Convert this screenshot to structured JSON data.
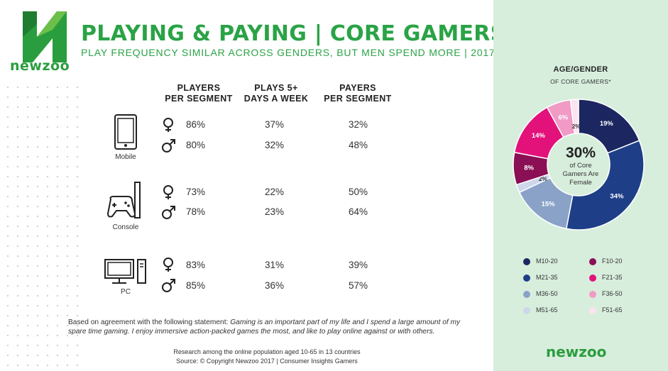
{
  "brand": {
    "name": "newzoo",
    "color": "#2a9d3e"
  },
  "header": {
    "title": "PLAYING & PAYING | CORE GAMERS",
    "title_mark": "*",
    "subtitle": "PLAY FREQUENCY SIMILAR ACROSS GENDERS, BUT MEN SPEND MORE | 2017"
  },
  "table": {
    "columns": [
      {
        "line1": "PLAYERS",
        "line2": "PER SEGMENT"
      },
      {
        "line1": "PLAYS 5+",
        "line2": "DAYS A WEEK"
      },
      {
        "line1": "PAYERS",
        "line2": "PER SEGMENT"
      }
    ],
    "devices": [
      {
        "name": "Mobile",
        "icon": "smartphone-icon",
        "female": [
          "86%",
          "37%",
          "32%"
        ],
        "male": [
          "80%",
          "32%",
          "48%"
        ]
      },
      {
        "name": "Console",
        "icon": "gamepad-icon",
        "female": [
          "73%",
          "22%",
          "50%"
        ],
        "male": [
          "78%",
          "23%",
          "64%"
        ]
      },
      {
        "name": "PC",
        "icon": "desktop-pc-icon",
        "female": [
          "83%",
          "31%",
          "39%"
        ],
        "male": [
          "85%",
          "36%",
          "57%"
        ]
      }
    ]
  },
  "footnote": {
    "lead": "Based on agreement with the following statement: ",
    "statement": "Gaming is an important part of my life and I spend a large amount of my spare time gaming. I enjoy immersive action-packed games the most, and like to play online against or with others."
  },
  "source": {
    "line1": "Research among the online population aged 10-65 in 13 countries",
    "line2": "Source: © Copyright Newzoo 2017 | Consumer Insights Gamers"
  },
  "side_panel": {
    "title": "AGE/GENDER",
    "subtitle": "OF CORE GAMERS*",
    "center_value": "30%",
    "center_text": [
      "of Core",
      "Gamers Are",
      "Female"
    ]
  },
  "chart_data": {
    "type": "pie",
    "title": "AGE/GENDER",
    "subtitle": "OF CORE GAMERS*",
    "hole": true,
    "slices": [
      {
        "label": "M10-20",
        "value": 19,
        "display": "19%",
        "color": "#1c2660"
      },
      {
        "label": "M21-35",
        "value": 34,
        "display": "34%",
        "color": "#1e3f87"
      },
      {
        "label": "M36-50",
        "value": 15,
        "display": "15%",
        "color": "#8aa2c8"
      },
      {
        "label": "M51-65",
        "value": 2,
        "display": "2%",
        "color": "#cdd6ea"
      },
      {
        "label": "F10-20",
        "value": 8,
        "display": "8%",
        "color": "#8a0f55"
      },
      {
        "label": "F21-35",
        "value": 14,
        "display": "14%",
        "color": "#e3127b"
      },
      {
        "label": "F36-50",
        "value": 6,
        "display": "6%",
        "color": "#f09ac5"
      },
      {
        "label": "F51-65",
        "value": 2,
        "display": "2%",
        "color": "#fbe3ef"
      }
    ],
    "legend": [
      [
        "M10-20",
        "F10-20"
      ],
      [
        "M21-35",
        "F21-35"
      ],
      [
        "M36-50",
        "F36-50"
      ],
      [
        "M51-65",
        "F51-65"
      ]
    ],
    "legend_position": "bottom"
  }
}
